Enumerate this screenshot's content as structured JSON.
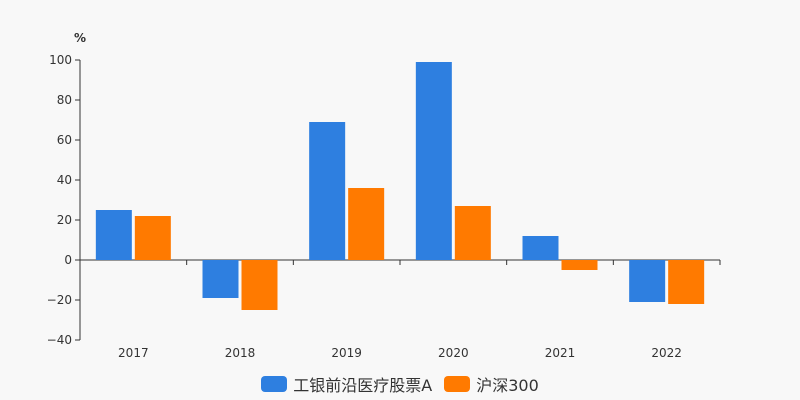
{
  "chart_data": {
    "type": "bar",
    "unit_label": "%",
    "categories": [
      "2017",
      "2018",
      "2019",
      "2020",
      "2021",
      "2022"
    ],
    "series": [
      {
        "name": "工银前沿医疗股票A",
        "color": "#2e7fe0",
        "values": [
          25,
          -19,
          69,
          99,
          12,
          -21
        ]
      },
      {
        "name": "沪深300",
        "color": "#ff7a00",
        "values": [
          22,
          -25,
          36,
          27,
          -5,
          -22
        ]
      }
    ],
    "ylim": [
      -40,
      100
    ],
    "yticks": [
      100,
      80,
      60,
      40,
      20,
      0,
      -20,
      -40
    ],
    "grid": false,
    "legend_position": "bottom-center"
  }
}
